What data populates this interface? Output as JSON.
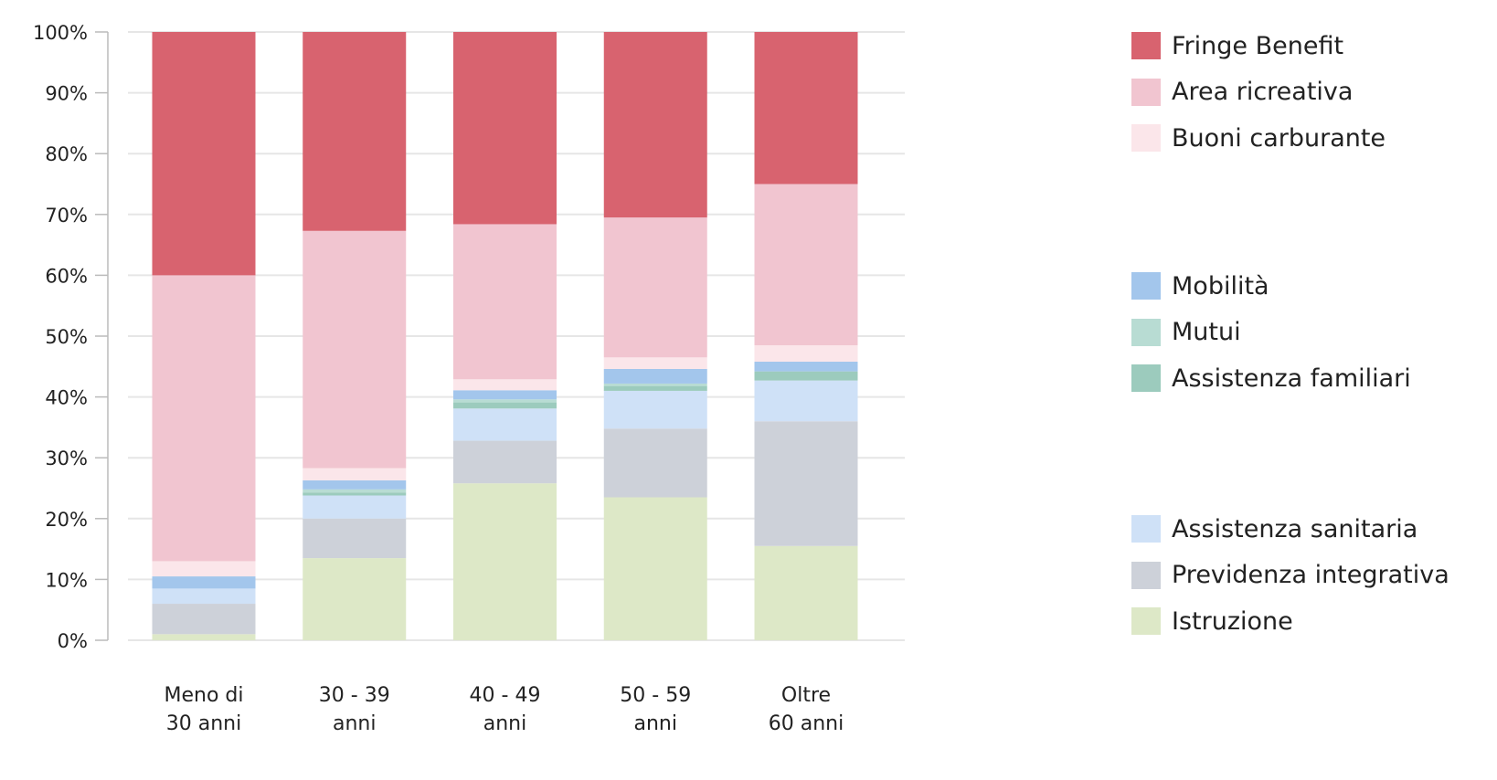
{
  "chart_data": {
    "type": "bar",
    "stacked": true,
    "categories": [
      [
        "Meno di",
        "30 anni"
      ],
      [
        "30 - 39",
        "anni"
      ],
      [
        "40 - 49",
        "anni"
      ],
      [
        "50 - 59",
        "anni"
      ],
      [
        "Oltre",
        "60 anni"
      ]
    ],
    "ylim": [
      0,
      100
    ],
    "yticks": [
      "0%",
      "10%",
      "20%",
      "30%",
      "40%",
      "50%",
      "60%",
      "70%",
      "80%",
      "90%",
      "100%"
    ],
    "grid": true,
    "legend_position": "right",
    "series": [
      {
        "name": "Istruzione",
        "color": "#dde8c7",
        "values": [
          1,
          13.5,
          25.8,
          23.5,
          15.5
        ]
      },
      {
        "name": "Previdenza integrativa",
        "color": "#cdd1d9",
        "values": [
          5,
          6.5,
          7,
          11.3,
          20.5
        ]
      },
      {
        "name": "Assistenza sanitaria",
        "color": "#cfe1f7",
        "values": [
          2.5,
          3.8,
          5.3,
          6.2,
          6.7
        ]
      },
      {
        "name": "Assistenza familiari",
        "color": "#9ccbbd",
        "values": [
          0,
          0.5,
          1,
          0.8,
          1.5
        ]
      },
      {
        "name": "Mutui",
        "color": "#b8dcd3",
        "values": [
          0,
          0.5,
          0.5,
          0.4,
          0
        ]
      },
      {
        "name": "Mobilità",
        "color": "#a3c6ec",
        "values": [
          2,
          1.5,
          1.5,
          2.4,
          1.6
        ]
      },
      {
        "name": "Buoni carburante",
        "color": "#fbe6ea",
        "values": [
          2.5,
          2,
          1.8,
          1.9,
          2.7
        ]
      },
      {
        "name": "Area ricreativa",
        "color": "#f1c5d0",
        "values": [
          47,
          39,
          25.5,
          23,
          26.5
        ]
      },
      {
        "name": "Fringe Benefit",
        "color": "#d8636f",
        "values": [
          40,
          32.7,
          31.6,
          30.5,
          25
        ]
      }
    ]
  },
  "legend": {
    "groups": [
      [
        "Fringe Benefit",
        "Area ricreativa",
        "Buoni carburante"
      ],
      [
        "Mobilità",
        "Mutui",
        "Assistenza familiari"
      ],
      [
        "Assistenza sanitaria",
        "Previdenza integrativa",
        "Istruzione"
      ]
    ]
  }
}
